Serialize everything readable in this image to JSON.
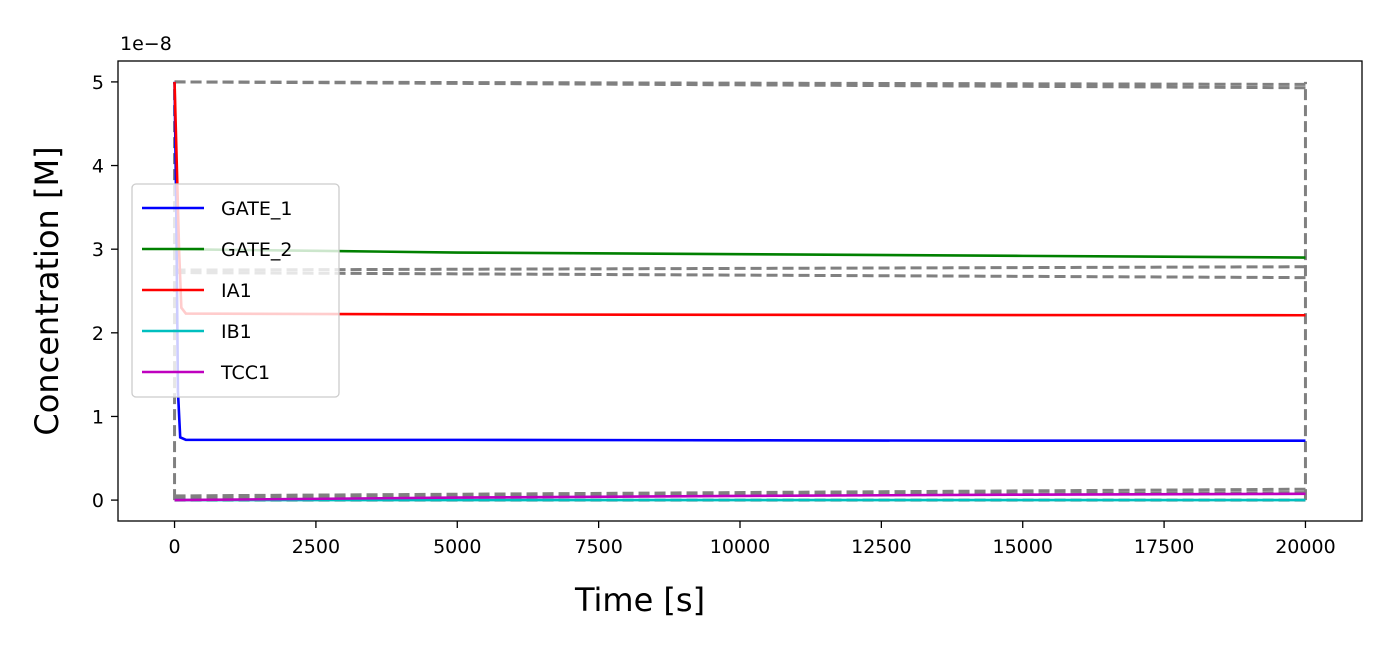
{
  "chart_data": {
    "type": "line",
    "title": "",
    "xlabel": "Time [s]",
    "ylabel": "Concentration [M]",
    "y_offset_label": "1e−8",
    "xlim": [
      -1000,
      21000
    ],
    "ylim": [
      -0.25,
      5.25
    ],
    "x_ticks": [
      0,
      2500,
      5000,
      7500,
      10000,
      12500,
      15000,
      17500,
      20000
    ],
    "x_tick_labels": [
      "0",
      "2500",
      "5000",
      "7500",
      "10000",
      "12500",
      "15000",
      "17500",
      "20000"
    ],
    "y_ticks": [
      0,
      1,
      2,
      3,
      4,
      5
    ],
    "y_tick_labels": [
      "0",
      "1",
      "2",
      "3",
      "4",
      "5"
    ],
    "grid": false,
    "legend_position": "center-left",
    "series": [
      {
        "name": "GATE_1",
        "color": "#0000ff",
        "style": "solid",
        "points": [
          [
            0,
            5.0
          ],
          [
            30,
            3.5
          ],
          [
            60,
            1.3
          ],
          [
            100,
            0.75
          ],
          [
            200,
            0.72
          ],
          [
            5000,
            0.72
          ],
          [
            10000,
            0.715
          ],
          [
            15000,
            0.71
          ],
          [
            20000,
            0.71
          ]
        ]
      },
      {
        "name": "GATE_2",
        "color": "#008000",
        "style": "solid",
        "points": [
          [
            0,
            3.0
          ],
          [
            2500,
            2.98
          ],
          [
            5000,
            2.96
          ],
          [
            10000,
            2.94
          ],
          [
            15000,
            2.92
          ],
          [
            20000,
            2.9
          ]
        ]
      },
      {
        "name": "IA1",
        "color": "#ff0000",
        "style": "solid",
        "points": [
          [
            0,
            5.0
          ],
          [
            40,
            4.0
          ],
          [
            80,
            3.0
          ],
          [
            120,
            2.3
          ],
          [
            200,
            2.23
          ],
          [
            5000,
            2.22
          ],
          [
            10000,
            2.215
          ],
          [
            20000,
            2.21
          ]
        ]
      },
      {
        "name": "IB1",
        "color": "#00bfbf",
        "style": "solid",
        "points": [
          [
            0,
            0.0
          ],
          [
            20000,
            0.0
          ]
        ]
      },
      {
        "name": "TCC1",
        "color": "#bf00bf",
        "style": "solid",
        "points": [
          [
            0,
            0.0
          ],
          [
            5000,
            0.03
          ],
          [
            10000,
            0.05
          ],
          [
            15000,
            0.065
          ],
          [
            20000,
            0.075
          ]
        ]
      }
    ],
    "reference_lines": [
      {
        "color": "#808080",
        "style": "dashed",
        "points": [
          [
            0,
            5.0
          ],
          [
            20000,
            4.97
          ]
        ]
      },
      {
        "color": "#808080",
        "style": "dashed",
        "points": [
          [
            0,
            5.0
          ],
          [
            20000,
            4.93
          ]
        ]
      },
      {
        "color": "#808080",
        "style": "dashed",
        "points": [
          [
            0,
            2.75
          ],
          [
            20000,
            2.79
          ]
        ]
      },
      {
        "color": "#808080",
        "style": "dashed",
        "points": [
          [
            0,
            2.72
          ],
          [
            20000,
            2.66
          ]
        ]
      },
      {
        "color": "#808080",
        "style": "dashed",
        "points": [
          [
            0,
            0.05
          ],
          [
            20000,
            0.13
          ]
        ]
      },
      {
        "color": "#808080",
        "style": "dashed",
        "points": [
          [
            0,
            0.03
          ],
          [
            20000,
            0.09
          ]
        ]
      },
      {
        "color": "#808080",
        "style": "dashed",
        "points": [
          [
            0,
            0.0
          ],
          [
            20000,
            0.0
          ]
        ]
      },
      {
        "color": "#808080",
        "style": "dashed",
        "points": [
          [
            0,
            0.0
          ],
          [
            0,
            5.0
          ]
        ]
      },
      {
        "color": "#808080",
        "style": "dashed",
        "points": [
          [
            20000,
            0.0
          ],
          [
            20000,
            5.0
          ]
        ]
      }
    ]
  }
}
